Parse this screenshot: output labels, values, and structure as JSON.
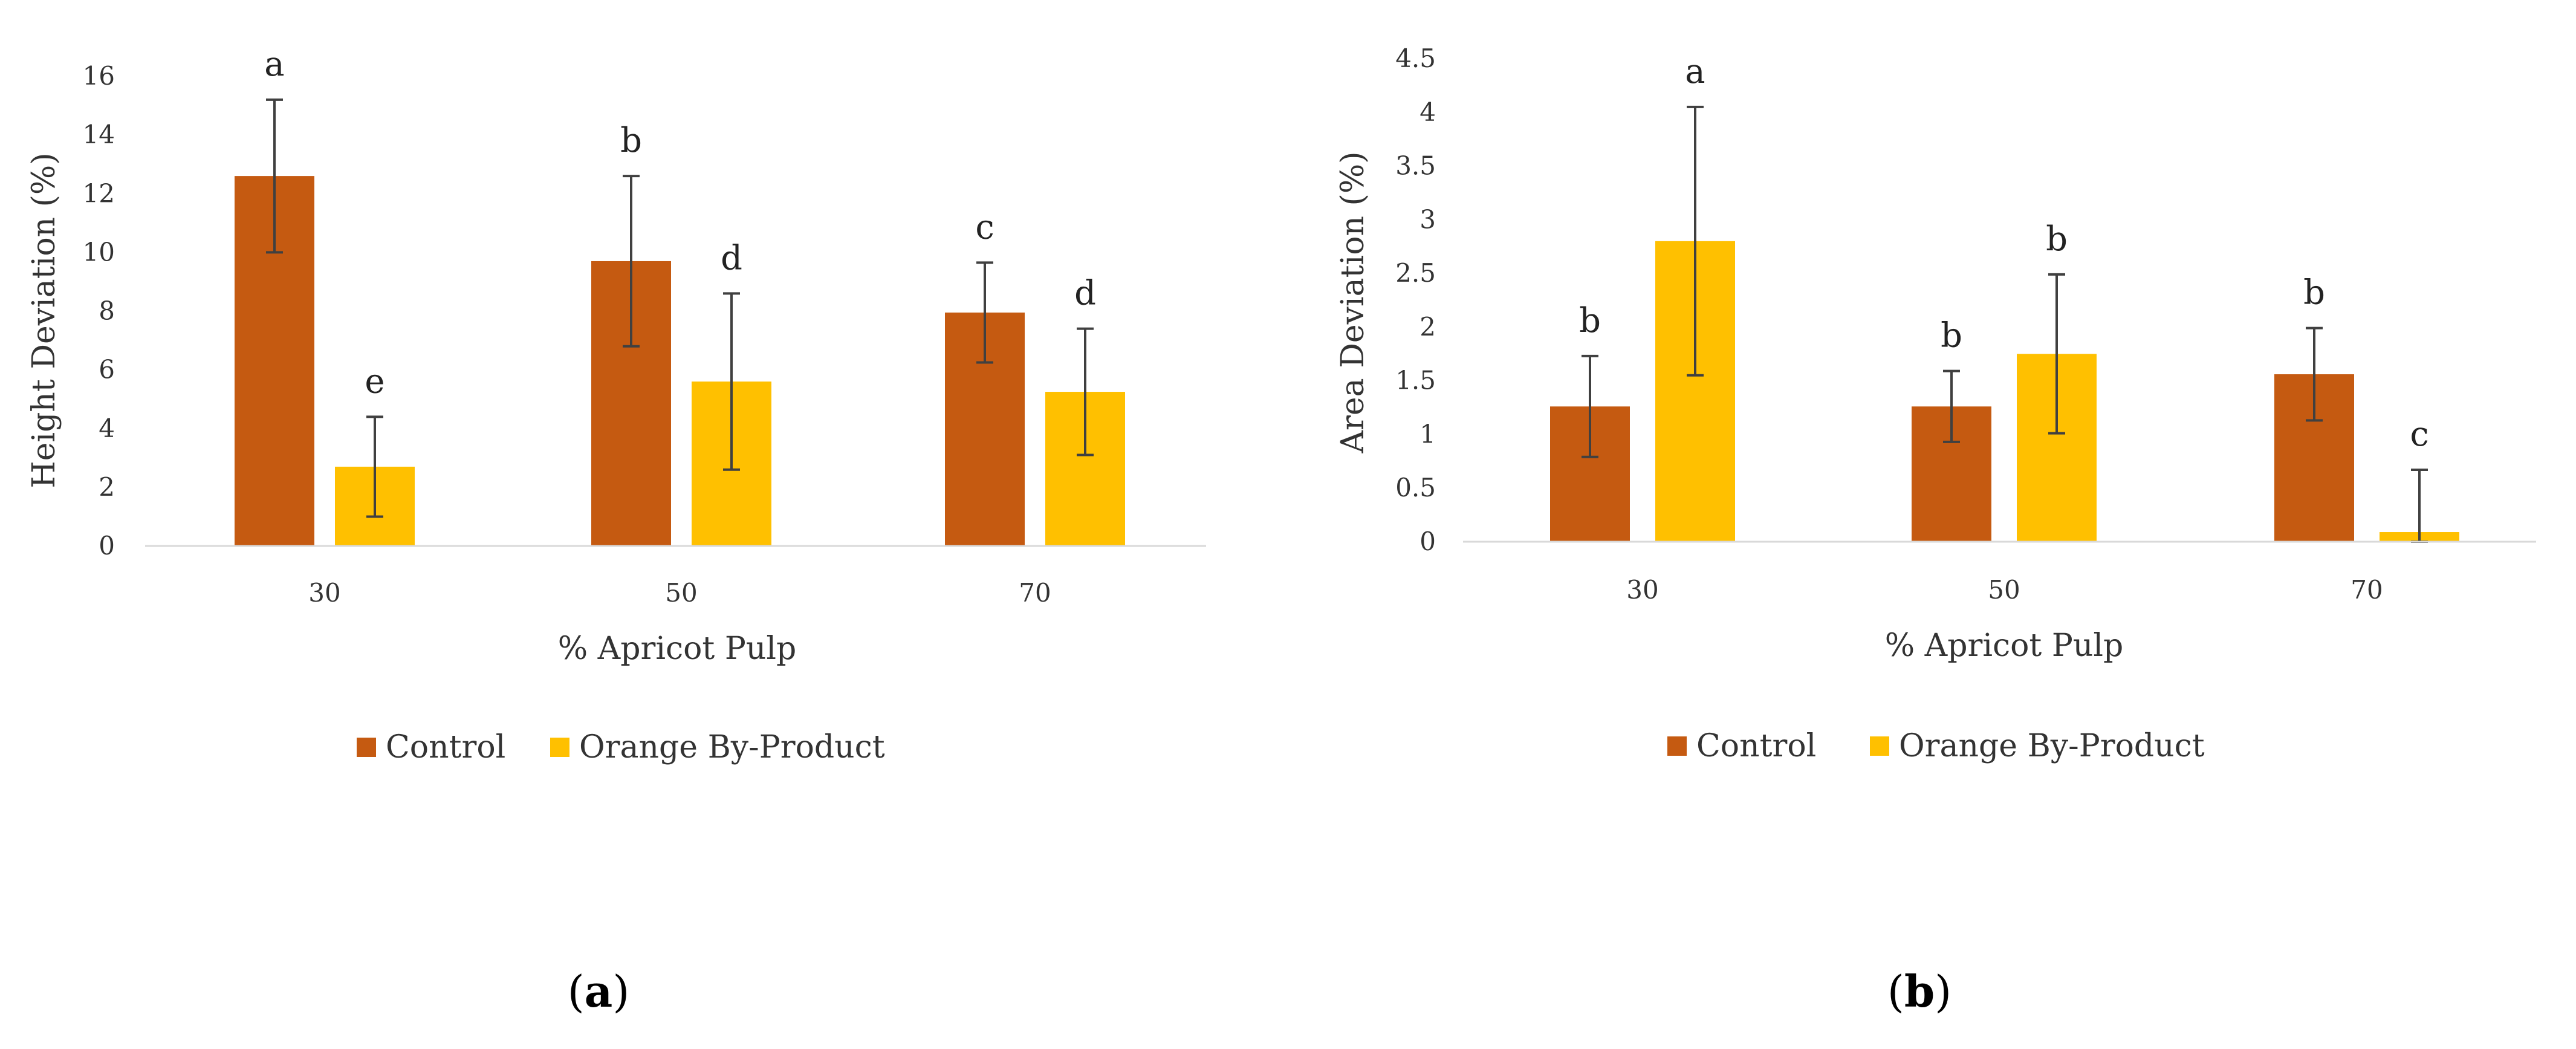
{
  "colors": {
    "control": "#C55A11",
    "orange_by_product": "#FFC000",
    "axis": "#D9D9D9",
    "error_bar": "#404040"
  },
  "chart_data": [
    {
      "panel": "a",
      "type": "bar",
      "title": "",
      "xlabel": "% Apricot Pulp",
      "ylabel": "Height Deviation (%)",
      "categories": [
        "30",
        "50",
        "70"
      ],
      "ylim": [
        0,
        16
      ],
      "yticks": [
        0,
        2,
        4,
        6,
        8,
        10,
        12,
        14,
        16
      ],
      "grid": false,
      "legend": "bottom",
      "series": [
        {
          "name": "Control",
          "color": "#C55A11",
          "values": [
            12.6,
            9.7,
            7.95
          ],
          "errors": [
            2.6,
            2.9,
            1.7
          ],
          "letters": [
            "a",
            "b",
            "c"
          ]
        },
        {
          "name": "Orange By-Product",
          "color": "#FFC000",
          "values": [
            2.7,
            5.6,
            5.25
          ],
          "errors": [
            1.7,
            3.0,
            2.15
          ],
          "letters": [
            "e",
            "d",
            "d"
          ]
        }
      ]
    },
    {
      "panel": "b",
      "type": "bar",
      "title": "",
      "xlabel": "% Apricot Pulp",
      "ylabel": "Area Deviation (%)",
      "categories": [
        "30",
        "50",
        "70"
      ],
      "ylim": [
        0,
        4.5
      ],
      "yticks": [
        0,
        0.5,
        1,
        1.5,
        2,
        2.5,
        3,
        3.5,
        4,
        4.5
      ],
      "grid": false,
      "legend": "bottom",
      "series": [
        {
          "name": "Control",
          "color": "#C55A11",
          "values": [
            1.26,
            1.26,
            1.56
          ],
          "errors": [
            0.47,
            0.33,
            0.43
          ],
          "letters": [
            "b",
            "b",
            "b"
          ]
        },
        {
          "name": "Orange By-Product",
          "color": "#FFC000",
          "values": [
            2.8,
            1.75,
            0.09
          ],
          "errors": [
            1.25,
            0.74,
            0.58
          ],
          "letters": [
            "a",
            "b",
            "c"
          ]
        }
      ]
    }
  ],
  "panel_labels": [
    "a",
    "b"
  ]
}
